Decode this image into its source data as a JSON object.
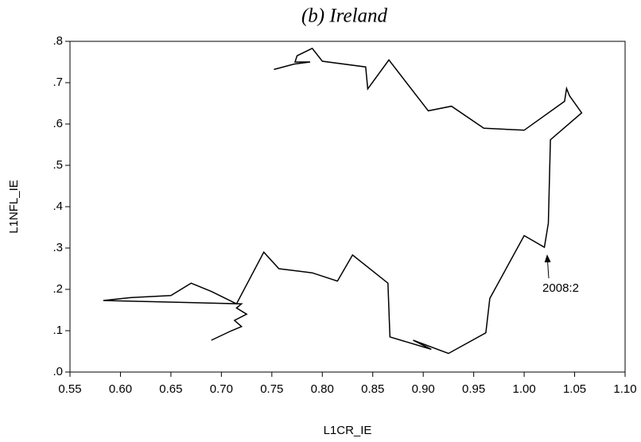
{
  "chart_data": {
    "type": "line",
    "title": "(b) Ireland",
    "x_label": "L1CR_IE",
    "y_label": "L1NFL_IE",
    "annotation": "2008:2",
    "color": "#000000",
    "xlim": [
      0.55,
      1.1
    ],
    "xticks": [
      0.55,
      {
        "value": 0.6,
        "label": "0.60"
      },
      0.65,
      {
        "value": 0.7,
        "label": "0.70"
      },
      0.75,
      {
        "value": 0.8,
        "label": "0.80"
      },
      0.85,
      {
        "value": 0.9,
        "label": "0.90"
      },
      0.95,
      {
        "value": 1.0,
        "label": "1.00"
      },
      1.05,
      {
        "value": 1.1,
        "label": "1.10"
      }
    ],
    "ylim": [
      0,
      0.8
    ],
    "yticks": [
      {
        "value": 0,
        "label": ".0"
      },
      {
        "value": 0.1,
        "label": ".1"
      },
      {
        "value": 0.2,
        "label": ".2"
      },
      {
        "value": 0.3,
        "label": ".3"
      },
      {
        "value": 0.4,
        "label": ".4"
      },
      {
        "value": 0.5,
        "label": ".5"
      },
      {
        "value": 0.6,
        "label": ".6"
      },
      {
        "value": 0.7,
        "label": ".7"
      },
      {
        "value": 0.8,
        "label": ".8"
      }
    ],
    "x": [
      0.69,
      0.71,
      0.72,
      0.713,
      0.725,
      0.715,
      0.72,
      0.583,
      0.61,
      0.65,
      0.67,
      0.69,
      0.715,
      0.742,
      0.757,
      0.79,
      0.815,
      0.83,
      0.865,
      0.867,
      0.908,
      0.89,
      0.925,
      0.962,
      0.966,
      1.0,
      1.02,
      1.024,
      1.026,
      1.057,
      1.045,
      1.042,
      1.04,
      1.0,
      0.96,
      0.928,
      0.905,
      0.866,
      0.845,
      0.843,
      0.8,
      0.79,
      0.775,
      0.773,
      0.788,
      0.772,
      0.752
    ],
    "y": [
      0.077,
      0.1,
      0.11,
      0.125,
      0.14,
      0.155,
      0.165,
      0.173,
      0.18,
      0.185,
      0.215,
      0.195,
      0.165,
      0.29,
      0.25,
      0.24,
      0.22,
      0.283,
      0.215,
      0.085,
      0.055,
      0.077,
      0.045,
      0.095,
      0.178,
      0.33,
      0.302,
      0.36,
      0.562,
      0.627,
      0.668,
      0.686,
      0.655,
      0.585,
      0.59,
      0.643,
      0.632,
      0.755,
      0.685,
      0.738,
      0.752,
      0.783,
      0.765,
      0.75,
      0.75,
      0.745,
      0.732
    ]
  }
}
